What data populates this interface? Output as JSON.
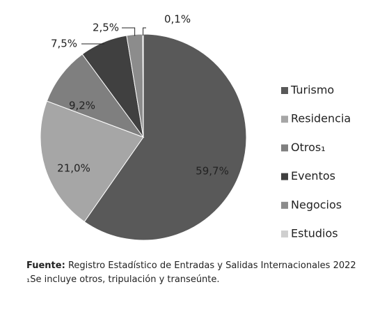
{
  "chart_data": {
    "type": "pie",
    "categories": [
      "Turismo",
      "Residencia",
      "Otros₁",
      "Eventos",
      "Negocios",
      "Estudios"
    ],
    "values": [
      59.7,
      21.0,
      9.2,
      7.5,
      2.5,
      0.1
    ],
    "value_labels": [
      "59,7%",
      "21,0%",
      "9,2%",
      "7,5%",
      "2,5%",
      "0,1%"
    ],
    "colors": [
      "#595959",
      "#a6a6a6",
      "#7f7f7f",
      "#404040",
      "#8c8c8c",
      "#cfcfcf"
    ],
    "legend": "right"
  },
  "source": {
    "label": "Fuente:",
    "text": "Registro Estadístico de Entradas y Salidas Internacionales 2022"
  },
  "footnote": "₁Se incluye otros, tripulación y transeúnte."
}
